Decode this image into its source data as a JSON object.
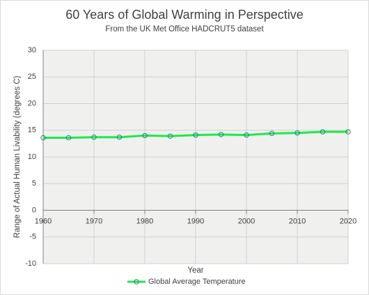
{
  "chart_data": {
    "type": "line",
    "title": "60 Years of Global Warming in Perspective",
    "subtitle": "From the UK Met Office HADCRUT5 dataset",
    "xlabel": "Year",
    "ylabel": "Range of Actual Human Livability (degrees C)",
    "x": [
      1960,
      1965,
      1970,
      1975,
      1980,
      1985,
      1990,
      1995,
      2000,
      2005,
      2010,
      2015,
      2020
    ],
    "series": [
      {
        "name": "Global Average Temperature",
        "color": "#1ee84a",
        "values": [
          13.6,
          13.6,
          13.7,
          13.7,
          14.0,
          13.9,
          14.1,
          14.2,
          14.1,
          14.4,
          14.5,
          14.7,
          14.7
        ]
      }
    ],
    "xlim": [
      1960,
      2020
    ],
    "xticks": [
      1960,
      1970,
      1980,
      1990,
      2000,
      2010,
      2020
    ],
    "ylim": [
      -10,
      30
    ],
    "yticks": [
      -10,
      -5,
      0,
      5,
      10,
      15,
      20,
      25,
      30
    ],
    "grid": true,
    "legend": "bottom"
  }
}
